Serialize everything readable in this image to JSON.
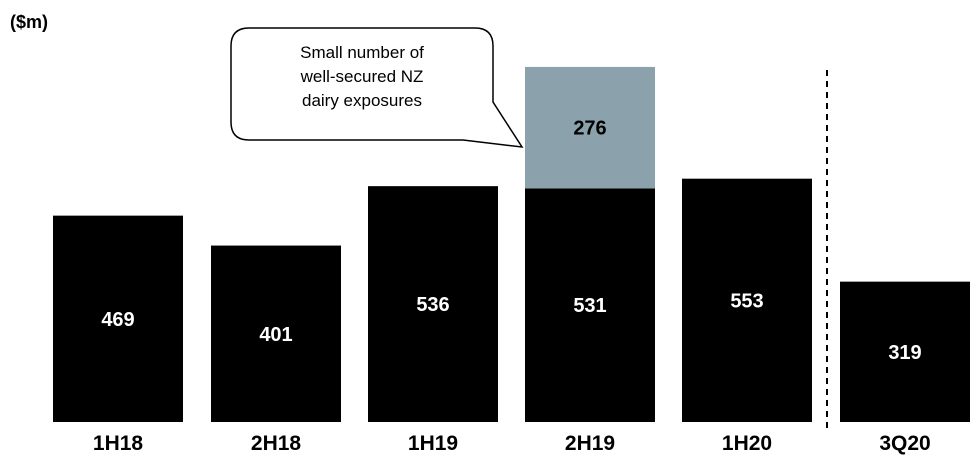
{
  "chart_data": {
    "type": "bar",
    "unit_label": "($m)",
    "categories": [
      "1H18",
      "2H18",
      "1H19",
      "2H19",
      "1H20",
      "3Q20"
    ],
    "series": [
      {
        "values": [
          469,
          401,
          536,
          531,
          553,
          319
        ],
        "color": "#000000"
      },
      {
        "values": [
          0,
          0,
          0,
          276,
          0,
          0
        ],
        "color": "#8ba2ad"
      }
    ],
    "annotation": {
      "text": "Small number of well-secured NZ dairy exposures",
      "lines": [
        "Small number of",
        "well-secured NZ",
        "dairy exposures"
      ],
      "target_category": "2H19"
    },
    "separator_before": "3Q20",
    "ylim": [
      0,
      900
    ],
    "grid": false,
    "legend": "none",
    "colors": {
      "bar": "#000000",
      "highlight": "#8ba2ad",
      "value_label_on_dark": "#ffffff",
      "value_label_on_light": "#000000",
      "text": "#000000"
    }
  }
}
